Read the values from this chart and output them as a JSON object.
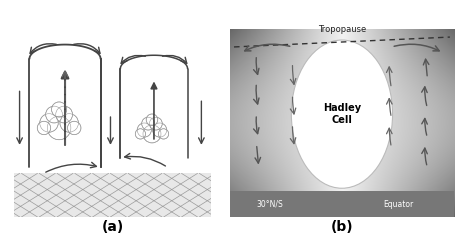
{
  "fig_width": 4.59,
  "fig_height": 2.41,
  "dpi": 100,
  "bg_color": "#ffffff",
  "label_a": "(a)",
  "label_b": "(b)",
  "title_tropopause": "Tropopause",
  "label_hadley": "Hadley\nCell",
  "label_30ns": "30°N/S",
  "label_equator": "Equator",
  "arrow_color": "#555555",
  "arrow_outline": "#ffffff"
}
